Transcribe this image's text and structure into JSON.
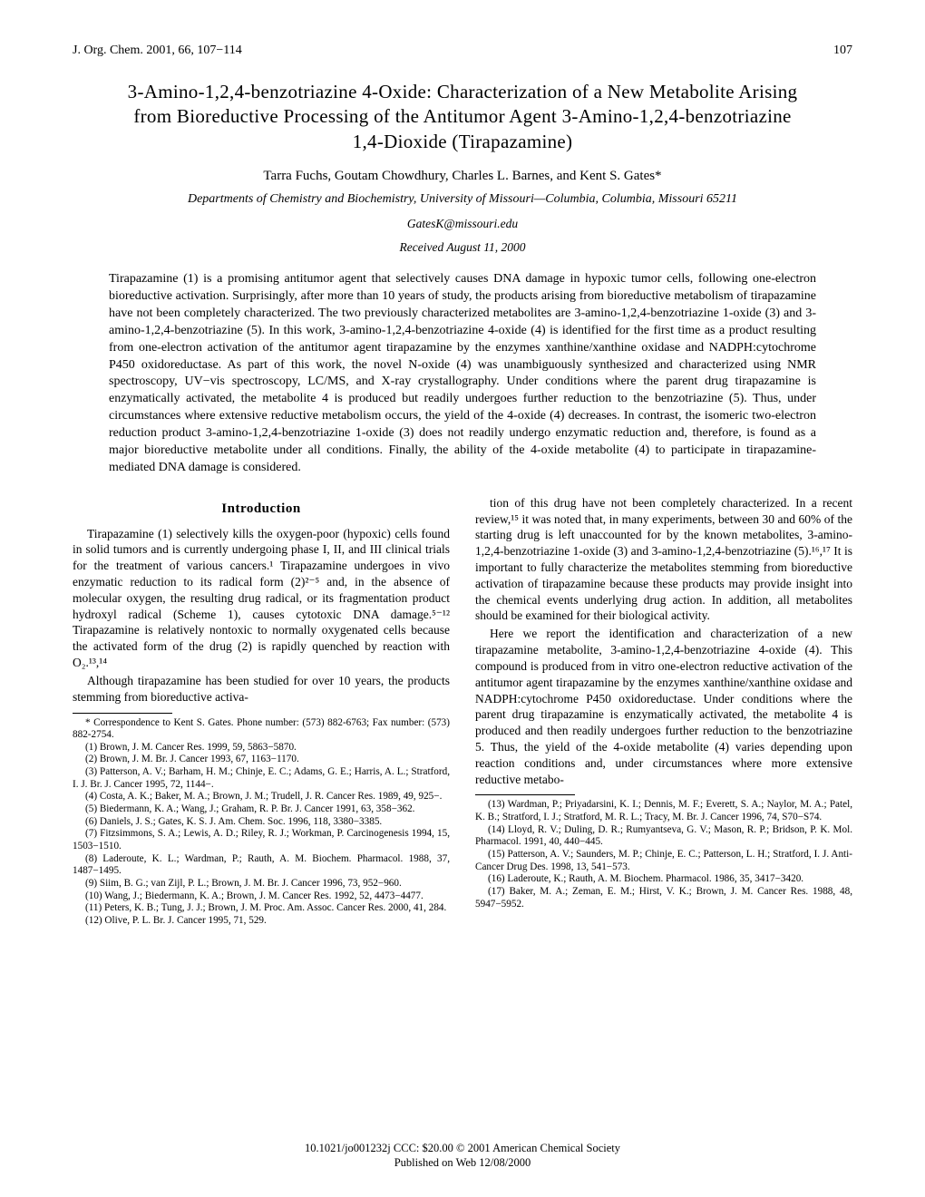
{
  "header": {
    "journal_ref": "J. Org. Chem. 2001, 66, 107−114",
    "page_number": "107"
  },
  "title": "3-Amino-1,2,4-benzotriazine 4-Oxide: Characterization of a New Metabolite Arising from Bioreductive Processing of the Antitumor Agent 3-Amino-1,2,4-benzotriazine 1,4-Dioxide (Tirapazamine)",
  "authors": "Tarra Fuchs, Goutam Chowdhury, Charles L. Barnes, and Kent S. Gates*",
  "affiliation": "Departments of Chemistry and Biochemistry, University of Missouri—Columbia, Columbia, Missouri 65211",
  "email": "GatesK@missouri.edu",
  "received": "Received August 11, 2000",
  "abstract": "Tirapazamine (1) is a promising antitumor agent that selectively causes DNA damage in hypoxic tumor cells, following one-electron bioreductive activation. Surprisingly, after more than 10 years of study, the products arising from bioreductive metabolism of tirapazamine have not been completely characterized. The two previously characterized metabolites are 3-amino-1,2,4-benzotriazine 1-oxide (3) and 3-amino-1,2,4-benzotriazine (5). In this work, 3-amino-1,2,4-benzotriazine 4-oxide (4) is identified for the first time as a product resulting from one-electron activation of the antitumor agent tirapazamine by the enzymes xanthine/xanthine oxidase and NADPH:cytochrome P450 oxidoreductase. As part of this work, the novel N-oxide (4) was unambiguously synthesized and characterized using NMR spectroscopy, UV−vis spectroscopy, LC/MS, and X-ray crystallography. Under conditions where the parent drug tirapazamine is enzymatically activated, the metabolite 4 is produced but readily undergoes further reduction to the benzotriazine (5). Thus, under circumstances where extensive reductive metabolism occurs, the yield of the 4-oxide (4) decreases. In contrast, the isomeric two-electron reduction product 3-amino-1,2,4-benzotriazine 1-oxide (3) does not readily undergo enzymatic reduction and, therefore, is found as a major bioreductive metabolite under all conditions. Finally, the ability of the 4-oxide metabolite (4) to participate in tirapazamine-mediated DNA damage is considered.",
  "introduction_heading": "Introduction",
  "left_col": {
    "p1": "Tirapazamine (1) selectively kills the oxygen-poor (hypoxic) cells found in solid tumors and is currently undergoing phase I, II, and III clinical trials for the treatment of various cancers.¹ Tirapazamine undergoes in vivo enzymatic reduction to its radical form (2)²⁻⁵ and, in the absence of molecular oxygen, the resulting drug radical, or its fragmentation product hydroxyl radical (Scheme 1), causes cytotoxic DNA damage.⁵⁻¹² Tirapazamine is relatively nontoxic to normally oxygenated cells because the activated form of the drug (2) is rapidly quenched by reaction with O₂.¹³,¹⁴",
    "p2": "Although tirapazamine has been studied for over 10 years, the products stemming from bioreductive activa-"
  },
  "right_col": {
    "p1": "tion of this drug have not been completely characterized. In a recent review,¹⁵ it was noted that, in many experiments, between 30 and 60% of the starting drug is left unaccounted for by the known metabolites, 3-amino-1,2,4-benzotriazine 1-oxide (3) and 3-amino-1,2,4-benzotriazine (5).¹⁶,¹⁷ It is important to fully characterize the metabolites stemming from bioreductive activation of tirapazamine because these products may provide insight into the chemical events underlying drug action. In addition, all metabolites should be examined for their biological activity.",
    "p2": "Here we report the identification and characterization of a new tirapazamine metabolite, 3-amino-1,2,4-benzotriazine 4-oxide (4). This compound is produced from in vitro one-electron reductive activation of the antitumor agent tirapazamine by the enzymes xanthine/xanthine oxidase and NADPH:cytochrome P450 oxidoreductase. Under conditions where the parent drug tirapazamine is enzymatically activated, the metabolite 4 is produced and then readily undergoes further reduction to the benzotriazine 5. Thus, the yield of the 4-oxide metabolite (4) varies depending upon reaction conditions and, under circumstances where more extensive reductive metabo-"
  },
  "footnotes_left": {
    "corr": "* Correspondence to Kent S. Gates. Phone number: (573) 882-6763; Fax number: (573) 882-2754.",
    "r1": "(1) Brown, J. M. Cancer Res. 1999, 59, 5863−5870.",
    "r2": "(2) Brown, J. M. Br. J. Cancer 1993, 67, 1163−1170.",
    "r3": "(3) Patterson, A. V.; Barham, H. M.; Chinje, E. C.; Adams, G. E.; Harris, A. L.; Stratford, I. J. Br. J. Cancer 1995, 72, 1144−.",
    "r4": "(4) Costa, A. K.; Baker, M. A.; Brown, J. M.; Trudell, J. R. Cancer Res. 1989, 49, 925−.",
    "r5": "(5) Biedermann, K. A.; Wang, J.; Graham, R. P. Br. J. Cancer 1991, 63, 358−362.",
    "r6": "(6) Daniels, J. S.; Gates, K. S. J. Am. Chem. Soc. 1996, 118, 3380−3385.",
    "r7": "(7) Fitzsimmons, S. A.; Lewis, A. D.; Riley, R. J.; Workman, P. Carcinogenesis 1994, 15, 1503−1510.",
    "r8": "(8) Laderoute, K. L.; Wardman, P.; Rauth, A. M. Biochem. Pharmacol. 1988, 37, 1487−1495.",
    "r9": "(9) Siim, B. G.; van Zijl, P. L.; Brown, J. M. Br. J. Cancer 1996, 73, 952−960.",
    "r10": "(10) Wang, J.; Biedermann, K. A.; Brown, J. M. Cancer Res. 1992, 52, 4473−4477.",
    "r11": "(11) Peters, K. B.; Tung, J. J.; Brown, J. M. Proc. Am. Assoc. Cancer Res. 2000, 41, 284.",
    "r12": "(12) Olive, P. L. Br. J. Cancer 1995, 71, 529."
  },
  "footnotes_right": {
    "r13": "(13) Wardman, P.; Priyadarsini, K. I.; Dennis, M. F.; Everett, S. A.; Naylor, M. A.; Patel, K. B.; Stratford, I. J.; Stratford, M. R. L.; Tracy, M. Br. J. Cancer 1996, 74, S70−S74.",
    "r14": "(14) Lloyd, R. V.; Duling, D. R.; Rumyantseva, G. V.; Mason, R. P.; Bridson, P. K. Mol. Pharmacol. 1991, 40, 440−445.",
    "r15": "(15) Patterson, A. V.; Saunders, M. P.; Chinje, E. C.; Patterson, L. H.; Stratford, I. J. Anti-Cancer Drug Des. 1998, 13, 541−573.",
    "r16": "(16) Laderoute, K.; Rauth, A. M. Biochem. Pharmacol. 1986, 35, 3417−3420.",
    "r17": "(17) Baker, M. A.; Zeman, E. M.; Hirst, V. K.; Brown, J. M. Cancer Res. 1988, 48, 5947−5952."
  },
  "footer": {
    "line1": "10.1021/jo001232j CCC: $20.00    © 2001 American Chemical Society",
    "line2": "Published on Web 12/08/2000"
  }
}
